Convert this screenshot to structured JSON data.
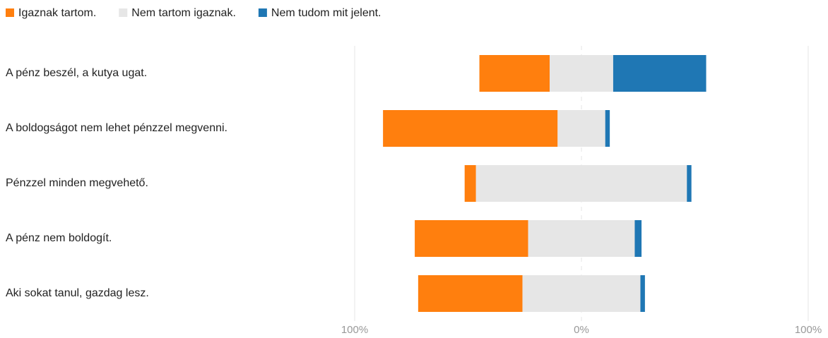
{
  "chart_data": {
    "type": "bar",
    "orientation": "horizontal",
    "categories": [
      "A pénz beszél, a kutya ugat.",
      "A boldogságot nem lehet pénzzel megvenni.",
      "Pénzzel minden megvehető.",
      "A pénz nem boldogít.",
      "Aki sokat tanul, gazdag lesz."
    ],
    "series": [
      {
        "name": "Igaznak tartom.",
        "color": "#ff7f0e",
        "values": [
          31,
          77,
          5,
          50,
          46
        ]
      },
      {
        "name": "Nem tartom igaznak.",
        "color": "#e6e6e6",
        "values": [
          28,
          21,
          93,
          47,
          52
        ]
      },
      {
        "name": "Nem tudom mit jelent.",
        "color": "#1f77b4",
        "values": [
          41,
          2,
          2,
          3,
          2
        ]
      }
    ],
    "xlim": [
      -100,
      100
    ],
    "xticks": [
      {
        "value": -100,
        "label": "100%"
      },
      {
        "value": 0,
        "label": "0%"
      },
      {
        "value": 100,
        "label": "100%"
      }
    ],
    "grid": true,
    "legend": "top-left"
  }
}
